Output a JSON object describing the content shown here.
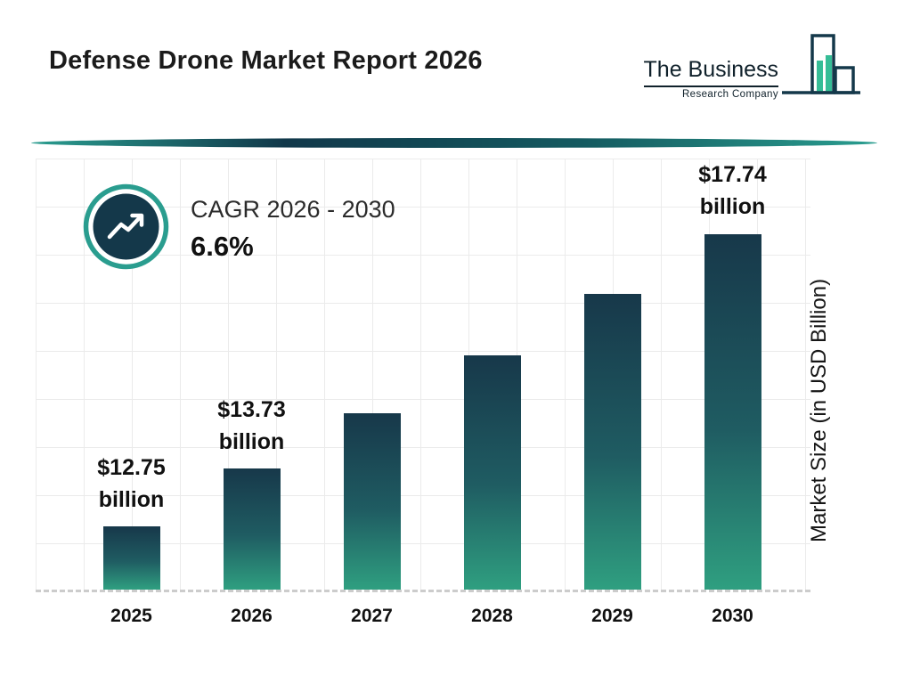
{
  "header": {
    "title": "Defense Drone Market Report 2026",
    "logo": {
      "line1": "The Business",
      "line2": "Research Company"
    }
  },
  "cagr": {
    "label": "CAGR 2026 - 2030",
    "value": "6.6%"
  },
  "chart_data": {
    "type": "bar",
    "title": "Defense Drone Market Report 2026",
    "categories": [
      "2025",
      "2026",
      "2027",
      "2028",
      "2029",
      "2030"
    ],
    "values": [
      12.75,
      13.73,
      14.64,
      15.61,
      16.64,
      17.74
    ],
    "bar_labels": [
      {
        "value": "$12.75",
        "unit": "billion"
      },
      {
        "value": "$13.73",
        "unit": "billion"
      },
      null,
      null,
      null,
      {
        "value": "$17.74",
        "unit": "billion"
      }
    ],
    "xlabel": "",
    "ylabel": "Market Size (in USD Billion)",
    "ylim": [
      11.7,
      18.9
    ],
    "grid": true,
    "legend": false,
    "colors": {
      "bar_gradient_top": "#17384a",
      "bar_gradient_bottom": "#2f9f80",
      "accent_teal": "#2a9d8f",
      "navy": "#14384a",
      "logo_fill_teal": "#35bd96",
      "grid": "#ebebeb"
    }
  }
}
